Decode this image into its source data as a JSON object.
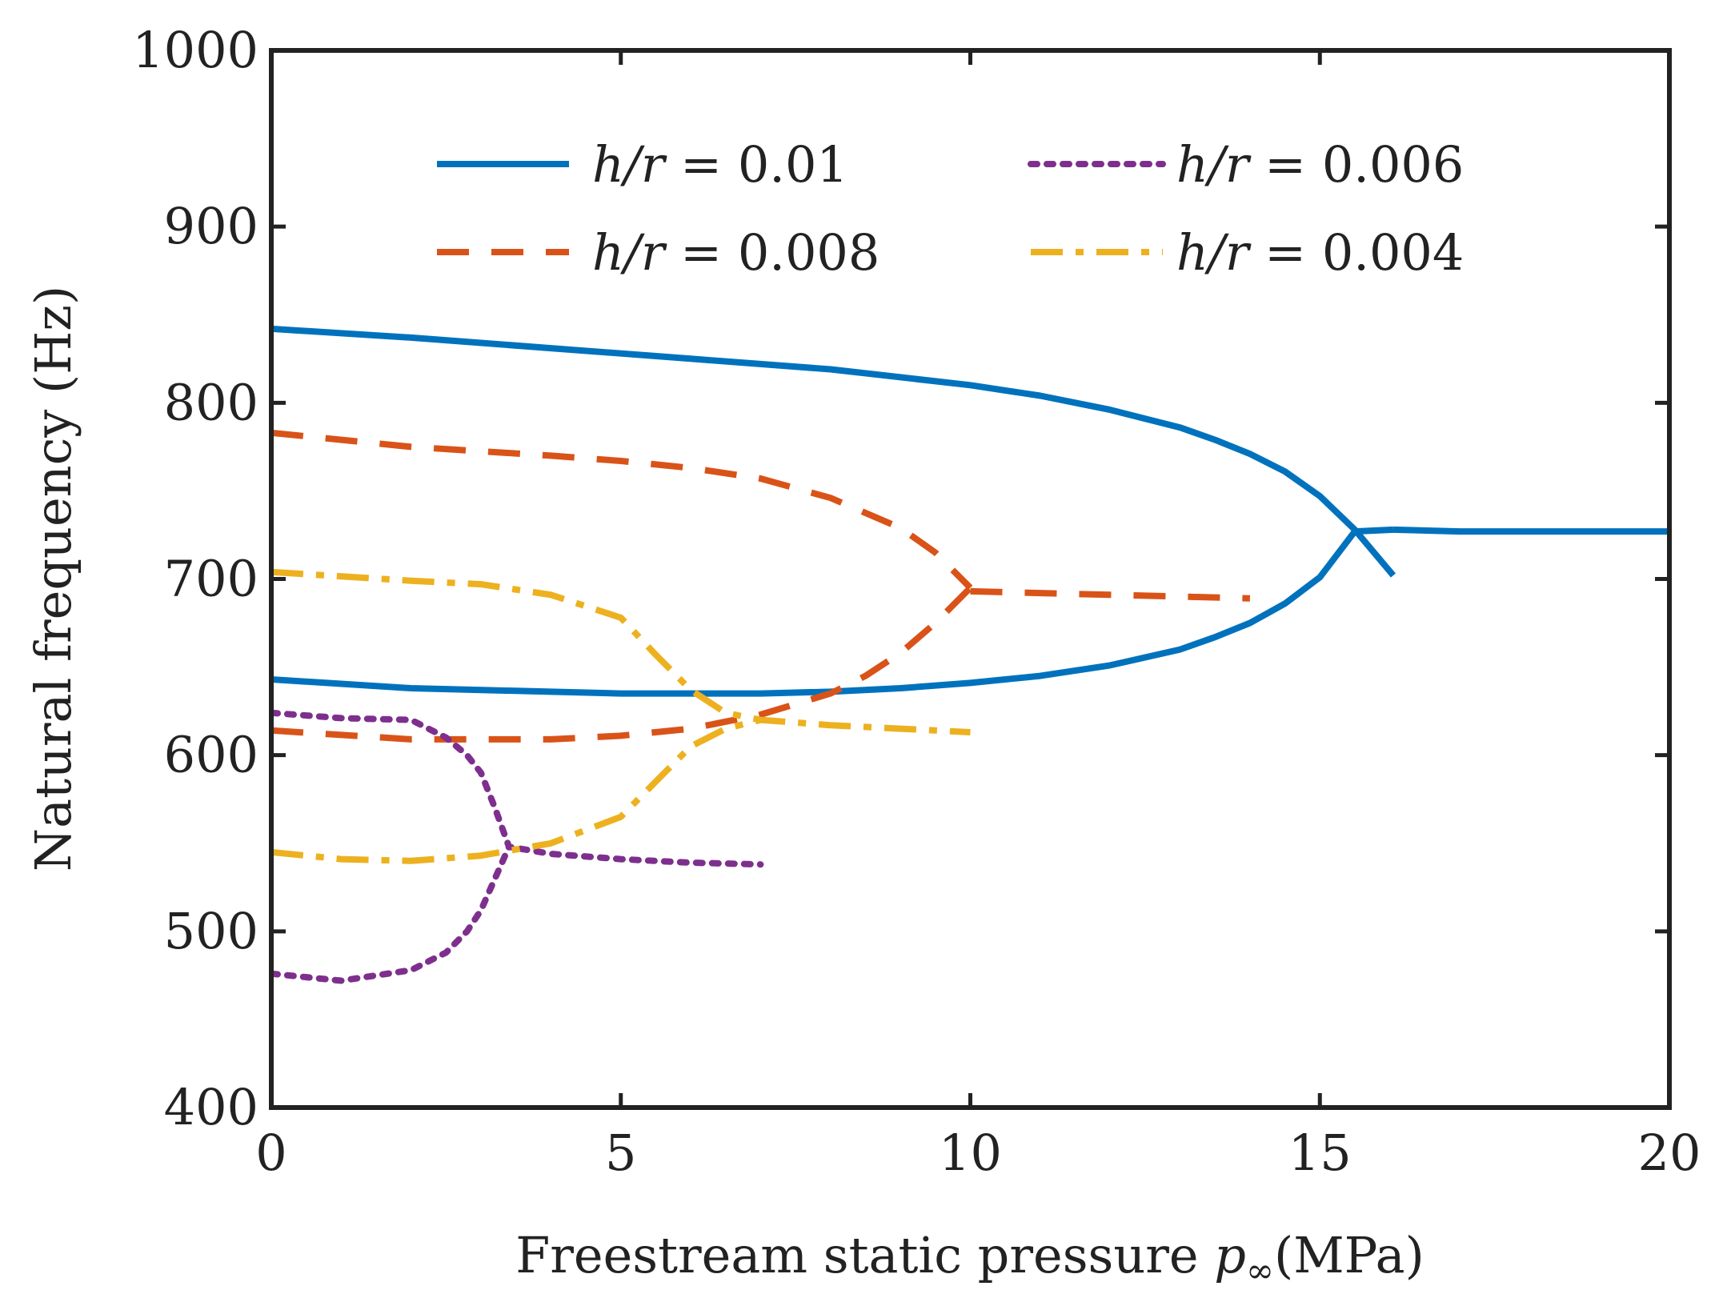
{
  "chart_data": {
    "type": "line",
    "title": "",
    "xlabel": "Freestream static pressure ",
    "xlabel_symbol": "p",
    "xlabel_subscript": "∞",
    "xlabel_unit": "(MPa)",
    "ylabel": "Natural frequency (Hz)",
    "xlim": [
      0,
      20
    ],
    "ylim": [
      400,
      1000
    ],
    "xticks": [
      0,
      5,
      10,
      15,
      20
    ],
    "yticks": [
      400,
      500,
      600,
      700,
      800,
      900,
      1000
    ],
    "grid": false,
    "legend_position": "top",
    "series": [
      {
        "name": "h/r = 0.01",
        "legend_symbol": "h/r",
        "legend_value": "= 0.01",
        "color": "#0072BD",
        "style": "solid",
        "segments": [
          {
            "x": [
              0,
              2,
              4,
              6,
              8,
              10,
              11,
              12,
              13,
              13.5,
              14,
              14.5,
              15,
              15.5,
              16.05
            ],
            "y": [
              842,
              837,
              831,
              825,
              819,
              810,
              804,
              796,
              786,
              779,
              771,
              761,
              747,
              728,
              702
            ]
          },
          {
            "x": [
              0,
              2,
              4,
              5,
              6,
              7,
              8,
              9,
              10,
              11,
              12,
              13,
              13.5,
              14,
              14.5,
              15,
              15.5,
              16.05
            ],
            "y": [
              643,
              638,
              636,
              635,
              635,
              635,
              636,
              638,
              641,
              645,
              651,
              660,
              667,
              675,
              686,
              701,
              727,
              728
            ]
          },
          {
            "x": [
              16.05,
              17,
              18,
              19,
              20
            ],
            "y": [
              728,
              727,
              727,
              727,
              727
            ]
          }
        ]
      },
      {
        "name": "h/r = 0.008",
        "legend_symbol": "h/r",
        "legend_value": "= 0.008",
        "color": "#D95319",
        "style": "dashed",
        "segments": [
          {
            "x": [
              0,
              2,
              4,
              5,
              6,
              7,
              8,
              9,
              9.5,
              10
            ],
            "y": [
              783,
              775,
              770,
              767,
              763,
              757,
              746,
              729,
              715,
              695
            ]
          },
          {
            "x": [
              0,
              2,
              3,
              4,
              5,
              6,
              7,
              8,
              8.5,
              9,
              9.5,
              10
            ],
            "y": [
              614,
              609,
              609,
              609,
              611,
              615,
              623,
              635,
              645,
              658,
              675,
              695
            ]
          },
          {
            "x": [
              10,
              11,
              12,
              13,
              14
            ],
            "y": [
              693,
              692,
              691,
              690,
              689
            ]
          }
        ]
      },
      {
        "name": "h/r = 0.006",
        "legend_symbol": "h/r",
        "legend_value": "= 0.006",
        "color": "#7E2F8E",
        "style": "dotted",
        "segments": [
          {
            "x": [
              0,
              1,
              2,
              2.5,
              2.8,
              3,
              3.2,
              3.4,
              4,
              5,
              6,
              7
            ],
            "y": [
              624,
              621,
              620,
              610,
              600,
              590,
              570,
              548,
              544,
              541,
              539,
              538
            ]
          },
          {
            "x": [
              0,
              1,
              2,
              2.5,
              2.8,
              3,
              3.2,
              3.4
            ],
            "y": [
              476,
              472,
              478,
              488,
              500,
              512,
              530,
              548
            ]
          }
        ]
      },
      {
        "name": "h/r = 0.004",
        "legend_symbol": "h/r",
        "legend_value": "= 0.004",
        "color": "#EDB120",
        "style": "dashdot",
        "segments": [
          {
            "x": [
              0,
              2,
              3,
              4,
              5,
              5.5,
              6,
              6.5,
              7,
              8,
              9,
              10
            ],
            "y": [
              704,
              699,
              697,
              691,
              678,
              657,
              637,
              624,
              620,
              617,
              615,
              613
            ]
          },
          {
            "x": [
              0,
              1,
              2,
              3,
              4,
              5,
              5.5,
              6,
              6.5,
              7
            ],
            "y": [
              545,
              541,
              540,
              543,
              550,
              565,
              585,
              605,
              615,
              620
            ]
          }
        ]
      }
    ]
  }
}
